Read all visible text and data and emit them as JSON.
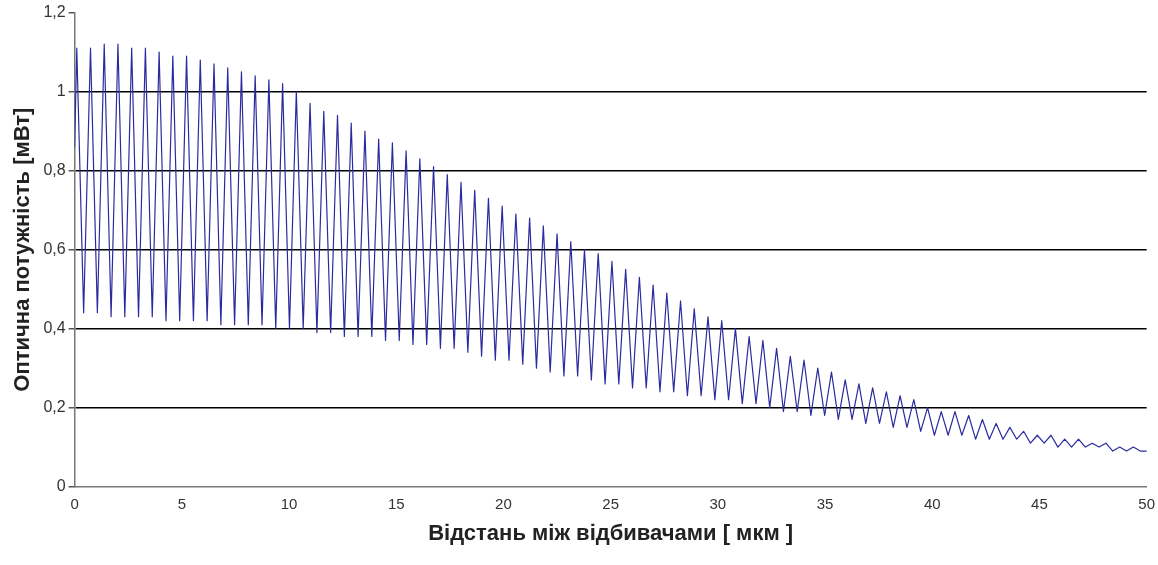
{
  "chart_data": {
    "type": "line",
    "xlabel": "Відстань між відбивачами [ мкм ]",
    "ylabel": "Оптична потужність [мВт]",
    "xlim": [
      0,
      50
    ],
    "xticks": [
      0,
      5,
      10,
      15,
      20,
      25,
      30,
      35,
      40,
      45,
      50
    ],
    "ylim": [
      0,
      1.2
    ],
    "yticks": [
      0,
      {
        "value": 0.2,
        "label": "0,2"
      },
      {
        "value": 0.4,
        "label": "0,4"
      },
      {
        "value": 0.6,
        "label": "0,6"
      },
      {
        "value": 0.8,
        "label": "0,8"
      },
      1,
      {
        "value": 1.2,
        "label": "1,2"
      }
    ],
    "grid": "y",
    "legend": false,
    "marker": "none",
    "line_style": "solid",
    "series": [
      {
        "color": "#2b2ba0",
        "x": [
          0,
          0.1,
          0.42,
          0.74,
          1.06,
          1.38,
          1.7,
          2.02,
          2.34,
          2.66,
          2.98,
          3.3,
          3.62,
          3.94,
          4.26,
          4.58,
          4.9,
          5.22,
          5.54,
          5.86,
          6.18,
          6.5,
          6.82,
          7.14,
          7.46,
          7.78,
          8.1,
          8.42,
          8.74,
          9.06,
          9.38,
          9.7,
          10.02,
          10.34,
          10.66,
          10.98,
          11.3,
          11.62,
          11.94,
          12.26,
          12.58,
          12.9,
          13.22,
          13.54,
          13.86,
          14.18,
          14.5,
          14.82,
          15.14,
          15.46,
          15.78,
          16.1,
          16.42,
          16.74,
          17.06,
          17.38,
          17.7,
          18.02,
          18.34,
          18.66,
          18.98,
          19.3,
          19.62,
          19.94,
          20.26,
          20.58,
          20.9,
          21.22,
          21.54,
          21.86,
          22.18,
          22.5,
          22.82,
          23.14,
          23.46,
          23.78,
          24.1,
          24.42,
          24.74,
          25.06,
          25.38,
          25.7,
          26.02,
          26.34,
          26.66,
          26.98,
          27.3,
          27.62,
          27.94,
          28.26,
          28.58,
          28.9,
          29.22,
          29.54,
          29.86,
          30.18,
          30.5,
          30.82,
          31.14,
          31.46,
          31.78,
          32.1,
          32.42,
          32.74,
          33.06,
          33.38,
          33.7,
          34.02,
          34.34,
          34.66,
          34.98,
          35.3,
          35.62,
          35.94,
          36.26,
          36.58,
          36.9,
          37.22,
          37.54,
          37.86,
          38.18,
          38.5,
          38.82,
          39.14,
          39.46,
          39.78,
          40.1,
          40.42,
          40.74,
          41.06,
          41.38,
          41.7,
          42.02,
          42.34,
          42.66,
          42.98,
          43.3,
          43.62,
          43.94,
          44.26,
          44.58,
          44.9,
          45.22,
          45.54,
          45.86,
          46.18,
          46.5,
          46.82,
          47.14,
          47.46,
          47.78,
          48.1,
          48.42,
          48.74,
          49.06,
          49.38,
          49.7,
          50
        ],
        "values": [
          0.86,
          1.11,
          0.44,
          1.11,
          0.44,
          1.12,
          0.43,
          1.12,
          0.43,
          1.11,
          0.43,
          1.11,
          0.43,
          1.1,
          0.42,
          1.09,
          0.42,
          1.09,
          0.42,
          1.08,
          0.42,
          1.07,
          0.41,
          1.06,
          0.41,
          1.05,
          0.41,
          1.04,
          0.41,
          1.03,
          0.4,
          1.02,
          0.4,
          1.0,
          0.4,
          0.97,
          0.39,
          0.95,
          0.39,
          0.94,
          0.38,
          0.92,
          0.38,
          0.9,
          0.38,
          0.88,
          0.37,
          0.87,
          0.37,
          0.85,
          0.36,
          0.83,
          0.36,
          0.81,
          0.35,
          0.79,
          0.35,
          0.77,
          0.34,
          0.75,
          0.33,
          0.73,
          0.32,
          0.71,
          0.32,
          0.69,
          0.31,
          0.68,
          0.3,
          0.66,
          0.29,
          0.64,
          0.28,
          0.62,
          0.28,
          0.6,
          0.27,
          0.59,
          0.26,
          0.57,
          0.26,
          0.55,
          0.25,
          0.53,
          0.25,
          0.51,
          0.24,
          0.49,
          0.24,
          0.47,
          0.23,
          0.45,
          0.23,
          0.43,
          0.22,
          0.42,
          0.22,
          0.4,
          0.21,
          0.38,
          0.21,
          0.37,
          0.2,
          0.35,
          0.19,
          0.33,
          0.19,
          0.32,
          0.18,
          0.3,
          0.18,
          0.29,
          0.17,
          0.27,
          0.17,
          0.26,
          0.16,
          0.25,
          0.16,
          0.24,
          0.15,
          0.23,
          0.15,
          0.22,
          0.14,
          0.2,
          0.13,
          0.19,
          0.13,
          0.19,
          0.13,
          0.18,
          0.12,
          0.17,
          0.12,
          0.16,
          0.12,
          0.15,
          0.12,
          0.14,
          0.11,
          0.13,
          0.11,
          0.13,
          0.1,
          0.12,
          0.1,
          0.12,
          0.1,
          0.11,
          0.1,
          0.11,
          0.09,
          0.1,
          0.09,
          0.1,
          0.09,
          0.09
        ]
      }
    ]
  }
}
